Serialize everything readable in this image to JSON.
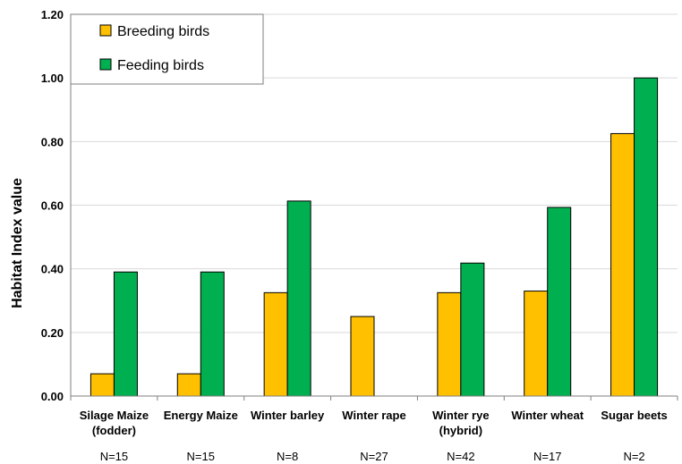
{
  "chart_data": {
    "type": "bar",
    "title": "",
    "xlabel": "",
    "ylabel": "Habitat Index value",
    "ylim": [
      0,
      1.2
    ],
    "yticks": [
      "0.00",
      "0.20",
      "0.40",
      "0.60",
      "0.80",
      "1.00",
      "1.20"
    ],
    "grid": "horizontal",
    "legend_position": "top-left",
    "categories": [
      [
        "Silage Maize",
        "(fodder)"
      ],
      [
        "Energy Maize"
      ],
      [
        "Winter barley"
      ],
      [
        "Winter rape"
      ],
      [
        "Winter rye",
        "(hybrid)"
      ],
      [
        "Winter wheat"
      ],
      [
        "Sugar beets"
      ]
    ],
    "sample_sizes": [
      "N=15",
      "N=15",
      "N=8",
      "N=27",
      "N=42",
      "N=17",
      "N=2"
    ],
    "series": [
      {
        "name": "Breeding birds",
        "color": "#FFC000",
        "values": [
          0.07,
          0.07,
          0.325,
          0.25,
          0.325,
          0.33,
          0.825
        ]
      },
      {
        "name": "Feeding birds",
        "color": "#00B050",
        "values": [
          0.39,
          0.39,
          0.613,
          null,
          0.418,
          0.593,
          1.0
        ]
      }
    ]
  }
}
